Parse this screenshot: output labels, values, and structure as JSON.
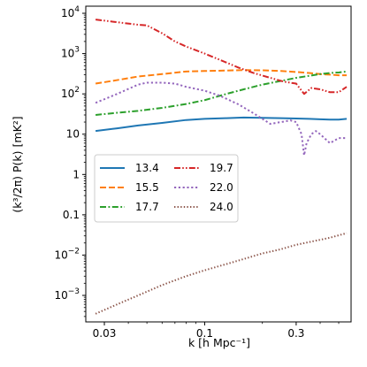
{
  "chart_data": {
    "type": "line",
    "xlabel": "k [h Mpc⁻¹]",
    "ylabel": "(k³/2π) P(k) [mK²]",
    "x_scale": "log",
    "y_scale": "log",
    "xlim": [
      0.024,
      0.58
    ],
    "ylim": [
      0.00022,
      15000
    ],
    "x_ticks": [
      {
        "value": 0.03,
        "label": "0.03"
      },
      {
        "value": 0.1,
        "label": "0.1"
      },
      {
        "value": 0.3,
        "label": "0.3"
      }
    ],
    "y_ticks": [
      {
        "value": 0.001,
        "label": "10",
        "exp": "−3"
      },
      {
        "value": 0.01,
        "label": "10",
        "exp": "−2"
      },
      {
        "value": 0.1,
        "label": "0.1",
        "exp": ""
      },
      {
        "value": 1,
        "label": "1",
        "exp": ""
      },
      {
        "value": 10,
        "label": "10",
        "exp": ""
      },
      {
        "value": 100,
        "label": "10",
        "exp": "2"
      },
      {
        "value": 1000,
        "label": "10",
        "exp": "3"
      },
      {
        "value": 10000,
        "label": "10",
        "exp": "4"
      }
    ],
    "grid": false,
    "legend_position": "center-left",
    "legend_columns": 2,
    "series": [
      {
        "name": "13.4",
        "color": "#1f77b4",
        "dash": "solid",
        "x": [
          0.027,
          0.035,
          0.045,
          0.06,
          0.08,
          0.1,
          0.13,
          0.16,
          0.2,
          0.25,
          0.3,
          0.35,
          0.4,
          0.45,
          0.5,
          0.55
        ],
        "y": [
          12,
          14,
          16.5,
          19,
          22.5,
          24,
          25,
          26,
          25.5,
          25,
          24.5,
          24,
          23.5,
          23,
          23,
          24
        ]
      },
      {
        "name": "15.5",
        "color": "#ff7f0e",
        "dash": "dashed",
        "x": [
          0.027,
          0.035,
          0.045,
          0.06,
          0.08,
          0.1,
          0.13,
          0.16,
          0.2,
          0.25,
          0.3,
          0.35,
          0.4,
          0.45,
          0.5,
          0.55
        ],
        "y": [
          180,
          220,
          270,
          310,
          360,
          370,
          380,
          390,
          385,
          370,
          350,
          330,
          310,
          300,
          290,
          290
        ]
      },
      {
        "name": "17.7",
        "color": "#2ca02c",
        "dash": "dashdot",
        "x": [
          0.027,
          0.035,
          0.045,
          0.06,
          0.08,
          0.1,
          0.13,
          0.16,
          0.2,
          0.25,
          0.3,
          0.35,
          0.4,
          0.45,
          0.5,
          0.55
        ],
        "y": [
          30,
          34,
          38,
          45,
          56,
          70,
          100,
          130,
          170,
          210,
          250,
          280,
          310,
          330,
          340,
          360
        ]
      },
      {
        "name": "19.7",
        "color": "#d62728",
        "dash": "dashdotdot",
        "x": [
          0.027,
          0.035,
          0.045,
          0.05,
          0.06,
          0.07,
          0.08,
          0.1,
          0.12,
          0.15,
          0.18,
          0.22,
          0.26,
          0.3,
          0.33,
          0.36,
          0.4,
          0.45,
          0.5,
          0.55
        ],
        "y": [
          7000,
          6000,
          5200,
          5000,
          3200,
          2000,
          1500,
          1000,
          700,
          450,
          330,
          250,
          200,
          180,
          100,
          140,
          130,
          110,
          110,
          150
        ]
      },
      {
        "name": "22.0",
        "color": "#9467bd",
        "dash": "dotted",
        "x": [
          0.027,
          0.035,
          0.045,
          0.05,
          0.06,
          0.07,
          0.08,
          0.1,
          0.12,
          0.15,
          0.18,
          0.22,
          0.25,
          0.28,
          0.3,
          0.32,
          0.33,
          0.34,
          0.36,
          0.38,
          0.4,
          0.45,
          0.5,
          0.55
        ],
        "y": [
          60,
          100,
          170,
          190,
          190,
          180,
          150,
          120,
          90,
          55,
          33,
          18,
          20,
          22,
          20,
          10,
          3,
          6,
          10,
          12,
          10,
          6,
          8,
          8
        ]
      },
      {
        "name": "24.0",
        "color": "#8c564b",
        "dash": "dense-dotted",
        "x": [
          0.027,
          0.035,
          0.045,
          0.06,
          0.08,
          0.1,
          0.13,
          0.16,
          0.2,
          0.25,
          0.3,
          0.35,
          0.4,
          0.45,
          0.5,
          0.55
        ],
        "y": [
          0.00035,
          0.0006,
          0.001,
          0.0018,
          0.003,
          0.0042,
          0.006,
          0.008,
          0.011,
          0.014,
          0.018,
          0.021,
          0.024,
          0.027,
          0.031,
          0.035
        ]
      }
    ]
  }
}
